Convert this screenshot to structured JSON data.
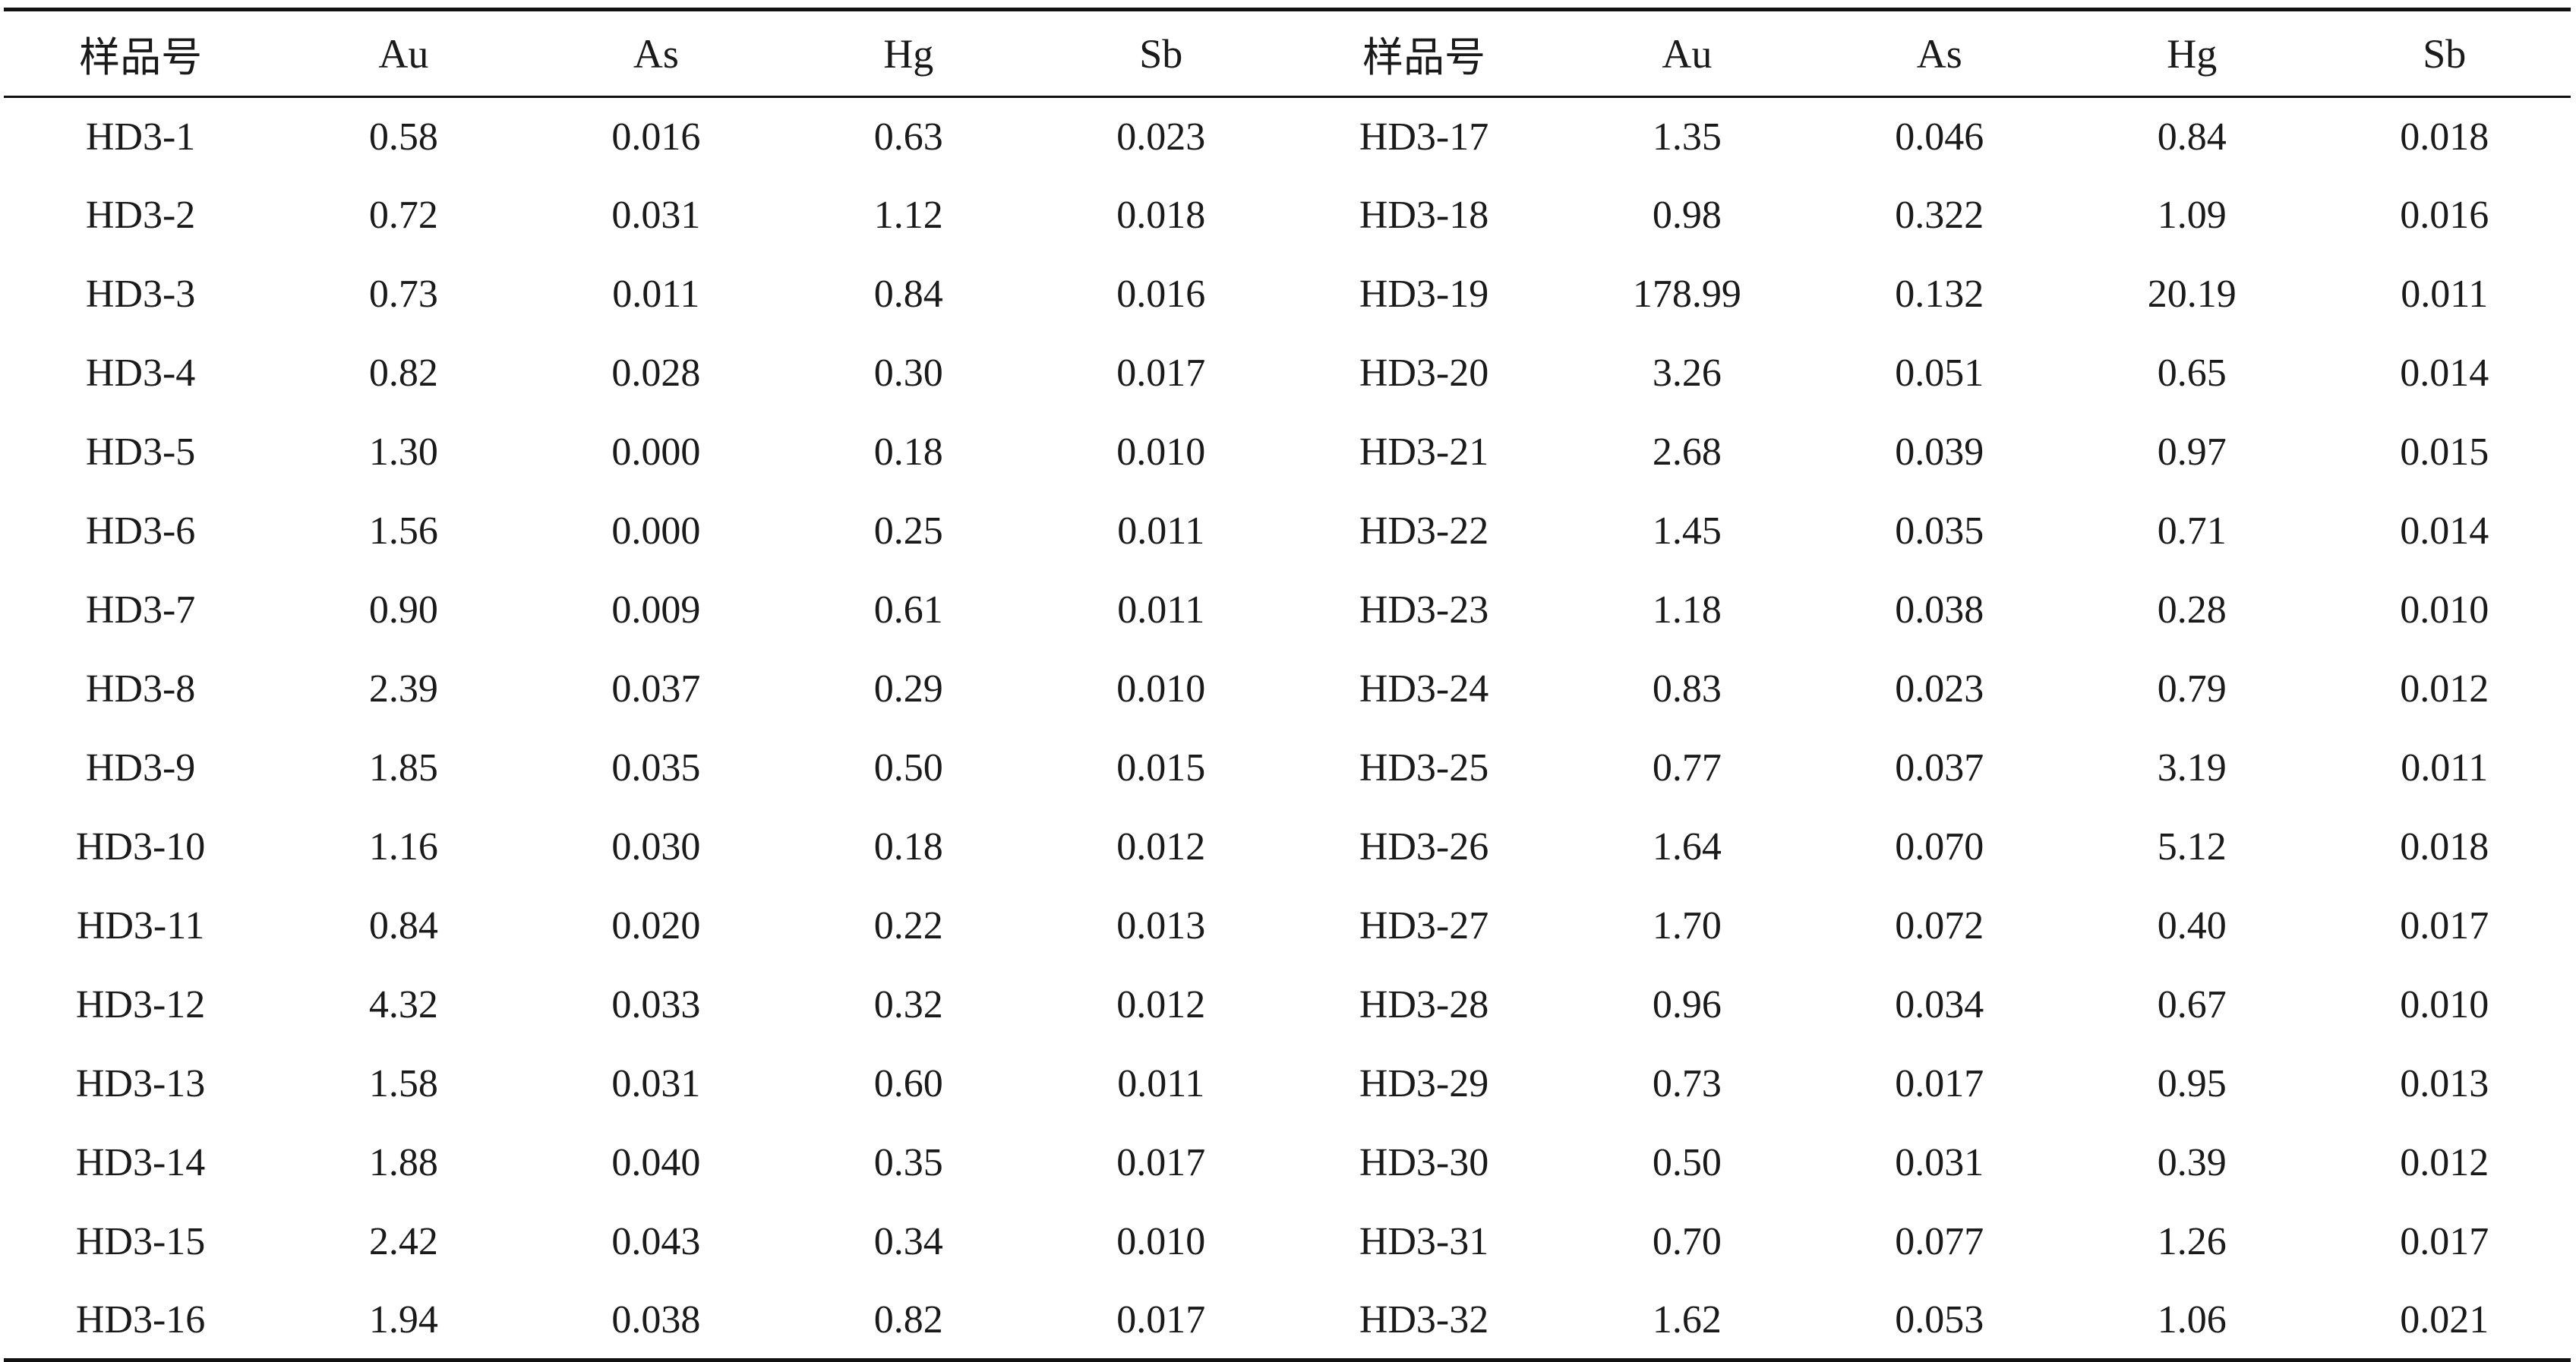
{
  "table": {
    "headers": [
      "样品号",
      "Au",
      "As",
      "Hg",
      "Sb",
      "样品号",
      "Au",
      "As",
      "Hg",
      "Sb"
    ],
    "rows": [
      [
        "HD3-1",
        "0.58",
        "0.016",
        "0.63",
        "0.023",
        "HD3-17",
        "1.35",
        "0.046",
        "0.84",
        "0.018"
      ],
      [
        "HD3-2",
        "0.72",
        "0.031",
        "1.12",
        "0.018",
        "HD3-18",
        "0.98",
        "0.322",
        "1.09",
        "0.016"
      ],
      [
        "HD3-3",
        "0.73",
        "0.011",
        "0.84",
        "0.016",
        "HD3-19",
        "178.99",
        "0.132",
        "20.19",
        "0.011"
      ],
      [
        "HD3-4",
        "0.82",
        "0.028",
        "0.30",
        "0.017",
        "HD3-20",
        "3.26",
        "0.051",
        "0.65",
        "0.014"
      ],
      [
        "HD3-5",
        "1.30",
        "0.000",
        "0.18",
        "0.010",
        "HD3-21",
        "2.68",
        "0.039",
        "0.97",
        "0.015"
      ],
      [
        "HD3-6",
        "1.56",
        "0.000",
        "0.25",
        "0.011",
        "HD3-22",
        "1.45",
        "0.035",
        "0.71",
        "0.014"
      ],
      [
        "HD3-7",
        "0.90",
        "0.009",
        "0.61",
        "0.011",
        "HD3-23",
        "1.18",
        "0.038",
        "0.28",
        "0.010"
      ],
      [
        "HD3-8",
        "2.39",
        "0.037",
        "0.29",
        "0.010",
        "HD3-24",
        "0.83",
        "0.023",
        "0.79",
        "0.012"
      ],
      [
        "HD3-9",
        "1.85",
        "0.035",
        "0.50",
        "0.015",
        "HD3-25",
        "0.77",
        "0.037",
        "3.19",
        "0.011"
      ],
      [
        "HD3-10",
        "1.16",
        "0.030",
        "0.18",
        "0.012",
        "HD3-26",
        "1.64",
        "0.070",
        "5.12",
        "0.018"
      ],
      [
        "HD3-11",
        "0.84",
        "0.020",
        "0.22",
        "0.013",
        "HD3-27",
        "1.70",
        "0.072",
        "0.40",
        "0.017"
      ],
      [
        "HD3-12",
        "4.32",
        "0.033",
        "0.32",
        "0.012",
        "HD3-28",
        "0.96",
        "0.034",
        "0.67",
        "0.010"
      ],
      [
        "HD3-13",
        "1.58",
        "0.031",
        "0.60",
        "0.011",
        "HD3-29",
        "0.73",
        "0.017",
        "0.95",
        "0.013"
      ],
      [
        "HD3-14",
        "1.88",
        "0.040",
        "0.35",
        "0.017",
        "HD3-30",
        "0.50",
        "0.031",
        "0.39",
        "0.012"
      ],
      [
        "HD3-15",
        "2.42",
        "0.043",
        "0.34",
        "0.010",
        "HD3-31",
        "0.70",
        "0.077",
        "1.26",
        "0.017"
      ],
      [
        "HD3-16",
        "1.94",
        "0.038",
        "0.82",
        "0.017",
        "HD3-32",
        "1.62",
        "0.053",
        "1.06",
        "0.021"
      ]
    ]
  }
}
